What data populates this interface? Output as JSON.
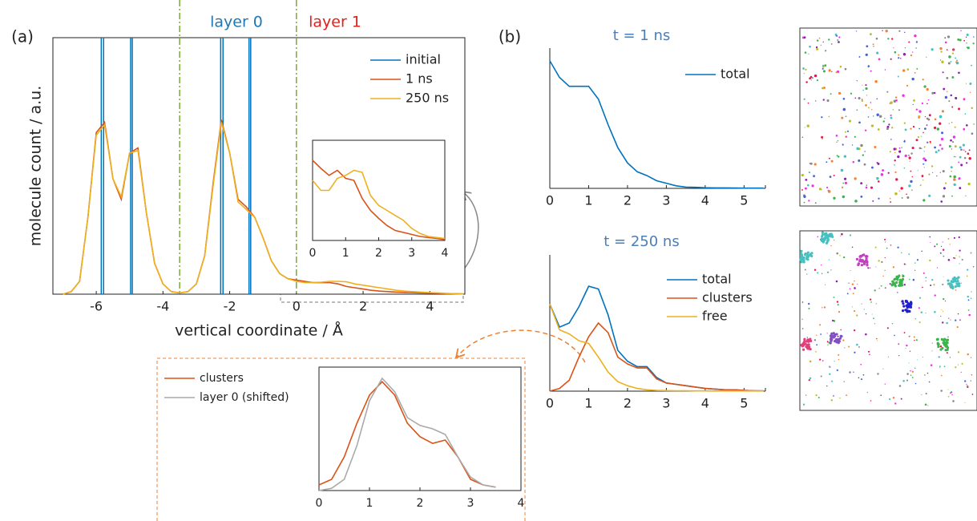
{
  "chart_data": [
    {
      "type": "line",
      "panel": "(a)",
      "xlabel": "vertical coordinate / Å",
      "ylabel": "molecule count / a.u.",
      "annotations": [
        {
          "text": "layer 0",
          "color": "#1f77b4"
        },
        {
          "text": "layer 1",
          "color": "#e0201b"
        }
      ],
      "divider_color": "#77AC30",
      "dividers": [
        -3.5,
        0
      ],
      "xlim": [
        -7.3,
        5.05
      ],
      "ylim": [
        0,
        1
      ],
      "xticks": [
        -6,
        -4,
        -2,
        0,
        2,
        4
      ],
      "x": [
        -7,
        -6.75,
        -6.5,
        -6.25,
        -6,
        -5.75,
        -5.5,
        -5.25,
        -5,
        -4.75,
        -4.5,
        -4.25,
        -4,
        -3.75,
        -3.5,
        -3.25,
        -3,
        -2.75,
        -2.5,
        -2.25,
        -2,
        -1.75,
        -1.5,
        -1.25,
        -1,
        -0.75,
        -0.5,
        -0.25,
        0,
        0.25,
        0.5,
        0.75,
        1,
        1.25,
        1.5,
        1.75,
        2,
        2.25,
        2.5,
        2.75,
        3,
        3.25,
        3.5,
        3.75,
        4,
        4.25,
        4.5,
        4.75,
        5
      ],
      "series": [
        {
          "name": "initial",
          "color": "#0072BD",
          "x": [
            -5.85,
            -5.78,
            -4.97,
            -4.92,
            -2.27,
            -2.2,
            -1.42,
            -1.37
          ]
        },
        {
          "name": "1 ns",
          "color": "#D95319",
          "values": [
            0,
            0.01,
            0.05,
            0.3,
            0.63,
            0.67,
            0.45,
            0.37,
            0.55,
            0.57,
            0.32,
            0.12,
            0.04,
            0.01,
            0.005,
            0.01,
            0.04,
            0.15,
            0.43,
            0.68,
            0.55,
            0.37,
            0.34,
            0.3,
            0.22,
            0.13,
            0.08,
            0.06,
            0.055,
            0.05,
            0.045,
            0.045,
            0.045,
            0.04,
            0.03,
            0.025,
            0.02,
            0.015,
            0.012,
            0.01,
            0.008,
            0.007,
            0.006,
            0.005,
            0.004,
            0.003,
            0.002,
            0.002,
            0.001
          ]
        },
        {
          "name": "250 ns",
          "color": "#EDB120",
          "values": [
            0,
            0.01,
            0.05,
            0.3,
            0.62,
            0.66,
            0.45,
            0.38,
            0.55,
            0.56,
            0.32,
            0.12,
            0.04,
            0.01,
            0.005,
            0.01,
            0.04,
            0.15,
            0.42,
            0.67,
            0.55,
            0.36,
            0.33,
            0.3,
            0.22,
            0.13,
            0.08,
            0.06,
            0.05,
            0.045,
            0.045,
            0.047,
            0.05,
            0.05,
            0.048,
            0.04,
            0.035,
            0.03,
            0.025,
            0.02,
            0.015,
            0.012,
            0.01,
            0.008,
            0.006,
            0.005,
            0.003,
            0.002,
            0.001
          ]
        }
      ]
    },
    {
      "type": "line",
      "xlim": [
        0,
        4
      ],
      "ylim": [
        0,
        1
      ],
      "xticks": [
        0,
        1,
        2,
        3,
        4
      ],
      "x": [
        0,
        0.25,
        0.5,
        0.75,
        1,
        1.25,
        1.5,
        1.75,
        2,
        2.25,
        2.5,
        2.75,
        3,
        3.25,
        3.5,
        3.75,
        4
      ],
      "series": [
        {
          "name": "1 ns",
          "color": "#D95319",
          "values": [
            0.8,
            0.72,
            0.65,
            0.7,
            0.62,
            0.6,
            0.42,
            0.3,
            0.22,
            0.15,
            0.1,
            0.08,
            0.06,
            0.04,
            0.03,
            0.02,
            0.01
          ]
        },
        {
          "name": "250 ns",
          "color": "#EDB120",
          "values": [
            0.6,
            0.5,
            0.5,
            0.62,
            0.65,
            0.7,
            0.68,
            0.45,
            0.35,
            0.3,
            0.25,
            0.2,
            0.12,
            0.07,
            0.04,
            0.03,
            0.02
          ]
        }
      ]
    },
    {
      "type": "line",
      "xlim": [
        0,
        4
      ],
      "ylim": [
        0,
        1.1
      ],
      "xticks": [
        0,
        1,
        2,
        3,
        4
      ],
      "x": [
        0,
        0.25,
        0.5,
        0.75,
        1,
        1.25,
        1.5,
        1.75,
        2,
        2.25,
        2.5,
        2.75,
        3,
        3.25,
        3.5
      ],
      "series": [
        {
          "name": "clusters",
          "color": "#D95319",
          "values": [
            0.05,
            0.1,
            0.3,
            0.6,
            0.85,
            0.97,
            0.85,
            0.6,
            0.48,
            0.42,
            0.45,
            0.3,
            0.1,
            0.05,
            0.03
          ]
        },
        {
          "name": "layer 0 (shifted)",
          "color": "#aaaaaa",
          "values": [
            0,
            0.02,
            0.1,
            0.4,
            0.8,
            1.0,
            0.88,
            0.65,
            0.58,
            0.55,
            0.5,
            0.3,
            0.12,
            0.05,
            0.03
          ]
        }
      ]
    },
    {
      "type": "line",
      "panel": "(b)",
      "title": "t = 1 ns",
      "title_color": "#4a7ebb",
      "xlim": [
        0,
        5.55
      ],
      "ylim": [
        0,
        1.1
      ],
      "xticks": [
        0,
        1,
        2,
        3,
        4,
        5
      ],
      "x": [
        0,
        0.25,
        0.5,
        0.75,
        1,
        1.25,
        1.5,
        1.75,
        2,
        2.25,
        2.5,
        2.75,
        3,
        3.25,
        3.5,
        3.75,
        4,
        4.25,
        4.5,
        4.75,
        5,
        5.25,
        5.5
      ],
      "series": [
        {
          "name": "total",
          "color": "#0072BD",
          "values": [
            1.0,
            0.87,
            0.8,
            0.8,
            0.8,
            0.7,
            0.5,
            0.32,
            0.2,
            0.13,
            0.1,
            0.06,
            0.04,
            0.02,
            0.01,
            0.008,
            0.005,
            0.004,
            0.004,
            0.003,
            0.002,
            0.002,
            0.002
          ]
        }
      ]
    },
    {
      "type": "line",
      "title": "t = 250 ns",
      "title_color": "#4a7ebb",
      "xlim": [
        0,
        5.55
      ],
      "ylim": [
        0,
        1
      ],
      "xticks": [
        0,
        1,
        2,
        3,
        4,
        5
      ],
      "x": [
        0,
        0.25,
        0.5,
        0.75,
        1,
        1.25,
        1.5,
        1.75,
        2,
        2.25,
        2.5,
        2.75,
        3,
        3.25,
        3.5,
        3.75,
        4,
        4.25,
        4.5,
        4.75,
        5,
        5.25,
        5.5
      ],
      "series": [
        {
          "name": "total",
          "color": "#0072BD",
          "values": [
            0.64,
            0.47,
            0.5,
            0.62,
            0.77,
            0.75,
            0.56,
            0.3,
            0.22,
            0.18,
            0.18,
            0.1,
            0.06,
            0.05,
            0.04,
            0.03,
            0.02,
            0.015,
            0.01,
            0.01,
            0.005,
            0.003,
            0.002
          ]
        },
        {
          "name": "clusters",
          "color": "#D95319",
          "values": [
            0,
            0.02,
            0.08,
            0.25,
            0.4,
            0.5,
            0.43,
            0.25,
            0.2,
            0.17,
            0.17,
            0.09,
            0.06,
            0.05,
            0.04,
            0.03,
            0.02,
            0.015,
            0.01,
            0.01,
            0.005,
            0.003,
            0.002
          ]
        },
        {
          "name": "free",
          "color": "#EDB120",
          "values": [
            0.64,
            0.45,
            0.42,
            0.37,
            0.35,
            0.25,
            0.14,
            0.07,
            0.04,
            0.02,
            0.01,
            0.005,
            0.004,
            0.003,
            0.003,
            0.002,
            0.002,
            0.001,
            0.001,
            0.001,
            0.001,
            0.001,
            0.001
          ]
        }
      ]
    }
  ]
}
